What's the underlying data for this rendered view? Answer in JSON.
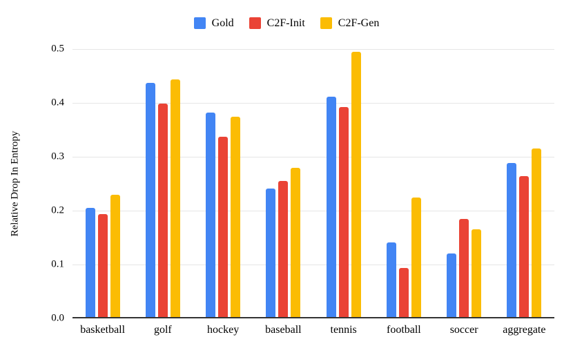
{
  "chart_data": {
    "type": "bar",
    "title": "",
    "xlabel": "",
    "ylabel": "Relative Drop In Entropy",
    "ylim": [
      0,
      0.5
    ],
    "yticks": [
      0,
      0.1,
      0.2,
      0.3,
      0.4,
      0.5
    ],
    "ytick_labels": [
      "0.0",
      "0.1",
      "0.2",
      "0.3",
      "0.4",
      "0.5"
    ],
    "grid": true,
    "legend_position": "top-center",
    "categories": [
      "basketball",
      "golf",
      "hockey",
      "baseball",
      "tennis",
      "football",
      "soccer",
      "aggregate"
    ],
    "series": [
      {
        "name": "Gold",
        "color": "#4285F4",
        "values": [
          0.205,
          0.437,
          0.382,
          0.241,
          0.412,
          0.141,
          0.121,
          0.289
        ]
      },
      {
        "name": "C2F-Init",
        "color": "#EA4335",
        "values": [
          0.193,
          0.399,
          0.337,
          0.255,
          0.392,
          0.094,
          0.185,
          0.264
        ]
      },
      {
        "name": "C2F-Gen",
        "color": "#FBBC04",
        "values": [
          0.23,
          0.444,
          0.375,
          0.279,
          0.495,
          0.224,
          0.165,
          0.315
        ]
      }
    ]
  },
  "colors": {
    "background": "#ffffff",
    "gridline": "#e6e6e6",
    "axis_line": "#333333",
    "text": "#000000"
  }
}
